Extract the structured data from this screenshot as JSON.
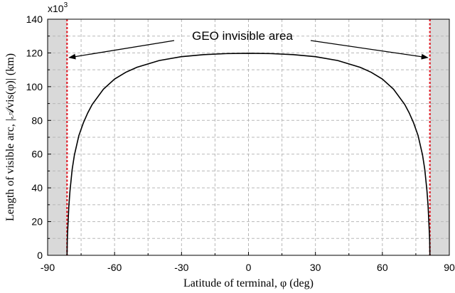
{
  "chart_data": {
    "type": "line",
    "xlabel": "Latitude of terminal, φ (deg)",
    "ylabel": "Length of visible arc, |𝒜vis(φ)| (km)",
    "y_multiplier": "x10",
    "y_multiplier_exp": "3",
    "xlim": [
      -90,
      90
    ],
    "ylim": [
      0,
      140
    ],
    "x_ticks": [
      "-90",
      "-60",
      "-30",
      "0",
      "30",
      "60",
      "90"
    ],
    "y_ticks": [
      "0",
      "20",
      "40",
      "60",
      "80",
      "100",
      "120",
      "140"
    ],
    "grid": true,
    "boundary_latitude": 81.3,
    "annotation": "GEO invisible area",
    "series": [
      {
        "x": [
          -81.3,
          -81.2,
          -81.0,
          -80.5,
          -80.0,
          -79.0,
          -78.0,
          -76.0,
          -74.0,
          -72.0,
          -70.0,
          -65.0,
          -60.0,
          -55.0,
          -50.0,
          -40.0,
          -30.0,
          -20.0,
          -10.0,
          0.0,
          10.0,
          20.0,
          30.0,
          40.0,
          50.0,
          55.0,
          60.0,
          65.0,
          70.0,
          72.0,
          74.0,
          76.0,
          78.0,
          79.0,
          80.0,
          80.5,
          81.0,
          81.2,
          81.3
        ],
        "values": [
          0,
          8.5,
          15,
          29,
          38,
          51,
          59.5,
          71,
          78.5,
          84.5,
          89.5,
          98.5,
          104.5,
          108.5,
          111.5,
          115.5,
          117.8,
          119.0,
          119.6,
          119.8,
          119.6,
          119.0,
          117.8,
          115.5,
          111.5,
          108.5,
          104.5,
          98.5,
          89.5,
          84.5,
          78.5,
          71,
          59.5,
          51,
          38,
          29,
          15,
          8.5,
          0
        ]
      }
    ]
  }
}
